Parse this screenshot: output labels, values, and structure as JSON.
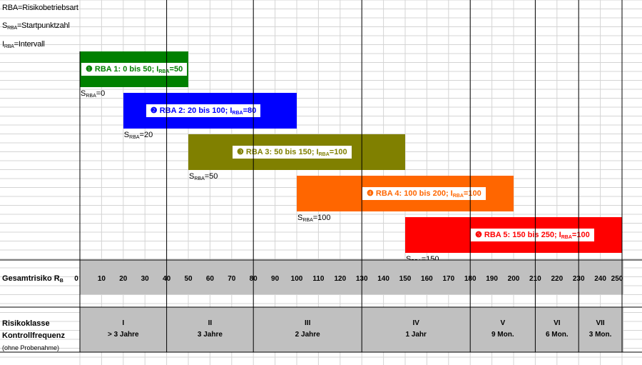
{
  "legend": {
    "line1": "RBA=Risikobetriebsart",
    "line2_main": "S",
    "line2_sub": "RBA",
    "line2_rest": "=Startpunktzahl",
    "line3_main": "I",
    "line3_sub": "RBA",
    "line3_rest": "=Intervall"
  },
  "bars": [
    {
      "label_pre": "❶ RBA 1: 0 bis 50; I",
      "label_sub": "RBA",
      "label_post": "=50",
      "color": "#008000",
      "text_color": "#008000",
      "start": 0,
      "end": 50,
      "s_main": "S",
      "s_sub": "RBA",
      "s_rest": "=0"
    },
    {
      "label_pre": "❷ RBA 2: 20 bis 100; I",
      "label_sub": "RBA",
      "label_post": "=80",
      "color": "#0000ff",
      "text_color": "#0000ff",
      "start": 20,
      "end": 100,
      "s_main": "S",
      "s_sub": "RBA",
      "s_rest": "=20"
    },
    {
      "label_pre": "❸ RBA 3: 50 bis 150; I",
      "label_sub": "RBA",
      "label_post": "=100",
      "color": "#808000",
      "text_color": "#808000",
      "start": 50,
      "end": 150,
      "s_main": "S",
      "s_sub": "RBA",
      "s_rest": "=50"
    },
    {
      "label_pre": "❹ RBA 4: 100 bis 200; I",
      "label_sub": "RBA",
      "label_post": "=100",
      "color": "#ff6600",
      "text_color": "#ff6600",
      "start": 100,
      "end": 200,
      "s_main": "S",
      "s_sub": "RBA",
      "s_rest": "=100"
    },
    {
      "label_pre": "❺ RBA 5: 150 bis 250; I",
      "label_sub": "RBA",
      "label_post": "=100",
      "color": "#ff0000",
      "text_color": "#ff0000",
      "start": 150,
      "end": 250,
      "s_main": "S",
      "s_sub": "RBA",
      "s_rest": "=150"
    }
  ],
  "axis": {
    "label_main": "Gesamtrisiko R",
    "label_sub": "B",
    "ticks": [
      "0",
      "10",
      "20",
      "30",
      "40",
      "50",
      "60",
      "70",
      "80",
      "90",
      "100",
      "110",
      "120",
      "130",
      "140",
      "150",
      "160",
      "170",
      "180",
      "190",
      "200",
      "210",
      "220",
      "230",
      "240",
      "250"
    ]
  },
  "classes": {
    "row1_label": "Risikoklasse",
    "row2_label": "Kontrollfrequenz",
    "row3_label": "(ohne Probenahme)",
    "items": [
      {
        "class": "I",
        "freq": "> 3 Jahre",
        "start": 0,
        "end": 40
      },
      {
        "class": "II",
        "freq": "3 Jahre",
        "start": 40,
        "end": 80
      },
      {
        "class": "III",
        "freq": "2 Jahre",
        "start": 80,
        "end": 130
      },
      {
        "class": "IV",
        "freq": "1 Jahr",
        "start": 130,
        "end": 180
      },
      {
        "class": "V",
        "freq": "9 Mon.",
        "start": 180,
        "end": 210
      },
      {
        "class": "VI",
        "freq": "6 Mon.",
        "start": 210,
        "end": 230
      },
      {
        "class": "VII",
        "freq": "3 Mon.",
        "start": 230,
        "end": 250
      }
    ]
  },
  "colors": {
    "band": "#c0c0c0",
    "grid": "#d4d4d4",
    "border": "#000000"
  }
}
